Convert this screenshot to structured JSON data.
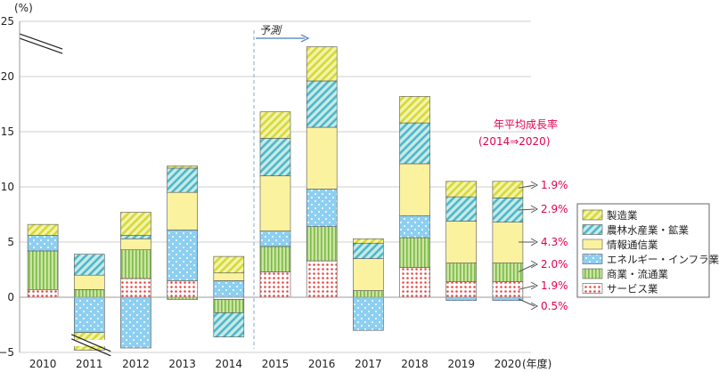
{
  "chart_data": {
    "type": "bar",
    "stacked": true,
    "y_unit_label": "(%)",
    "x_unit_label": "(年度)",
    "ylim": [
      -5,
      25
    ],
    "yticks": [
      -5,
      0,
      5,
      10,
      15,
      20,
      25
    ],
    "categories": [
      "2010",
      "2011",
      "2012",
      "2013",
      "2014",
      "2015",
      "2016",
      "2017",
      "2018",
      "2019",
      "2020"
    ],
    "series": [
      {
        "name": "サービス業",
        "color": "#e8403c",
        "pattern": "dots-red",
        "values": [
          0.7,
          0.0,
          1.7,
          1.5,
          -0.2,
          2.3,
          3.3,
          0.0,
          2.7,
          1.4,
          1.4
        ]
      },
      {
        "name": "商業・流通業",
        "color": "#a6d46a",
        "pattern": "vstripes-green",
        "values": [
          3.5,
          0.7,
          2.6,
          -0.2,
          -1.2,
          2.3,
          3.1,
          0.6,
          2.7,
          1.7,
          1.7
        ]
      },
      {
        "name": "エネルギー・インフラ業",
        "color": "#7fc8ee",
        "pattern": "dots-blue",
        "values": [
          1.4,
          -3.2,
          -4.6,
          4.6,
          1.5,
          1.4,
          3.4,
          -3.0,
          2.0,
          -0.3,
          -0.3
        ]
      },
      {
        "name": "情報通信業",
        "color": "#fbf2a0",
        "pattern": "solid-yellow",
        "values": [
          0.0,
          1.3,
          1.0,
          3.4,
          0.7,
          5.0,
          5.6,
          2.9,
          4.7,
          3.8,
          3.7
        ]
      },
      {
        "name": "農林水産業・鉱業",
        "color": "#7fd0d6",
        "pattern": "diag-teal",
        "values": [
          0.0,
          1.9,
          0.3,
          2.2,
          -2.2,
          3.4,
          4.2,
          1.4,
          3.7,
          2.2,
          2.2
        ]
      },
      {
        "name": "製造業",
        "color": "#e8ea5c",
        "pattern": "diag-yellow",
        "values": [
          1.0,
          -1.6,
          2.1,
          0.2,
          1.5,
          2.4,
          3.1,
          0.4,
          2.4,
          1.4,
          1.5
        ]
      }
    ],
    "overflow_values": {
      "2010_top": 25,
      "2011_bottom": -5
    },
    "forecast_label": "予測",
    "growth_title_line1": "年平均成長率",
    "growth_title_line2": "(2014⇒2020)",
    "growth_rates": [
      "1.9%",
      "2.9%",
      "4.3%",
      "2.0%",
      "1.9%",
      "0.5%"
    ],
    "grid": true,
    "legend_position": "right"
  }
}
